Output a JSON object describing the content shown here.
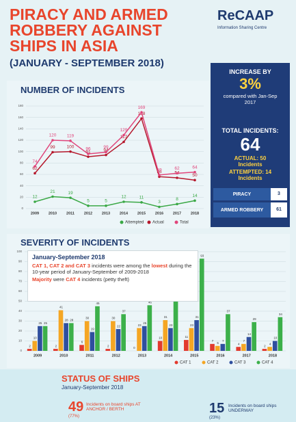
{
  "header": {
    "title": "PIRACY AND ARMED ROBBERY AGAINST SHIPS IN ASIA",
    "subtitle": "(JANUARY - SEPTEMBER 2018)",
    "logo": "ReCAAP",
    "logo_sub": "Information Sharing Centre"
  },
  "sections": {
    "incidents": "NUMBER OF INCIDENTS",
    "severity": "SEVERITY OF INCIDENTS"
  },
  "chart_data": [
    {
      "type": "line",
      "categories": [
        "2009",
        "2010",
        "2011",
        "2012",
        "2013",
        "2014",
        "2015",
        "2016",
        "2017",
        "2018"
      ],
      "series": [
        {
          "name": "Attempted",
          "color": "#3aa845",
          "values": [
            12,
            21,
            19,
            5,
            5,
            12,
            11,
            3,
            8,
            14
          ]
        },
        {
          "name": "Actual",
          "color": "#b5172b",
          "values": [
            62,
            99,
            100,
            91,
            94,
            117,
            158,
            56,
            54,
            50
          ]
        },
        {
          "name": "Total",
          "color": "#e0457b",
          "values": [
            74,
            120,
            119,
            96,
            99,
            129,
            169,
            59,
            62,
            64
          ]
        }
      ],
      "ylim": [
        0,
        180
      ],
      "yticks": [
        0,
        20,
        40,
        60,
        80,
        100,
        120,
        140,
        160,
        180
      ],
      "grid": true
    },
    {
      "type": "bar",
      "categories": [
        "2009",
        "2010",
        "2011",
        "2012",
        "2013",
        "2014",
        "2015",
        "2016",
        "2017",
        "2018"
      ],
      "series": [
        {
          "name": "CAT 1",
          "color": "#e23a2e",
          "values": [
            2,
            2,
            6,
            2,
            0,
            10,
            11,
            7,
            4,
            2
          ]
        },
        {
          "name": "CAT 2",
          "color": "#f5a623",
          "values": [
            10,
            41,
            30,
            30,
            23,
            31,
            23,
            5,
            7,
            4
          ]
        },
        {
          "name": "CAT 3",
          "color": "#2f4f9e",
          "values": [
            25,
            28,
            19,
            22,
            25,
            23,
            31,
            7,
            14,
            10
          ]
        },
        {
          "name": "CAT 4",
          "color": "#3cb04a",
          "values": [
            25,
            28,
            45,
            37,
            46,
            53,
            93,
            37,
            29,
            34
          ]
        }
      ],
      "ylim": [
        0,
        100
      ],
      "yticks": [
        0,
        10,
        20,
        30,
        40,
        50,
        60,
        70,
        80,
        90,
        100
      ],
      "grid": true
    }
  ],
  "side": {
    "increase": "INCREASE BY",
    "pct": "3%",
    "compared": "compared with Jan-Sep 2017",
    "total_label": "TOTAL INCIDENTS:",
    "total": "64",
    "actual": "ACTUAL: 50 Incidents",
    "attempted": "ATTEMPTED: 14 Incidents",
    "piracy": "PIRACY",
    "piracy_n": "3",
    "robbery": "ARMED ROBBERY",
    "robbery_n": "61"
  },
  "box": {
    "title": "January-September 2018",
    "bullets": [
      [
        "CAT 1, CAT 2 and CAT 3",
        " incidents were among the ",
        "lowest",
        " during the 10-year period of January-September of 2009-2018"
      ],
      [
        "Majority",
        " were ",
        "CAT 4",
        " incidents (petty theft)"
      ]
    ]
  },
  "status": {
    "title": "STATUS OF SHIPS",
    "period": "January-September 2018",
    "anchor_n": "49",
    "anchor_pct": "(77%)",
    "anchor_text": "Incidents on board ships AT ANCHOR / BERTH",
    "underway_n": "15",
    "underway_pct": "(23%)",
    "underway_text": "Incidents on board ships UNDERWAY"
  }
}
